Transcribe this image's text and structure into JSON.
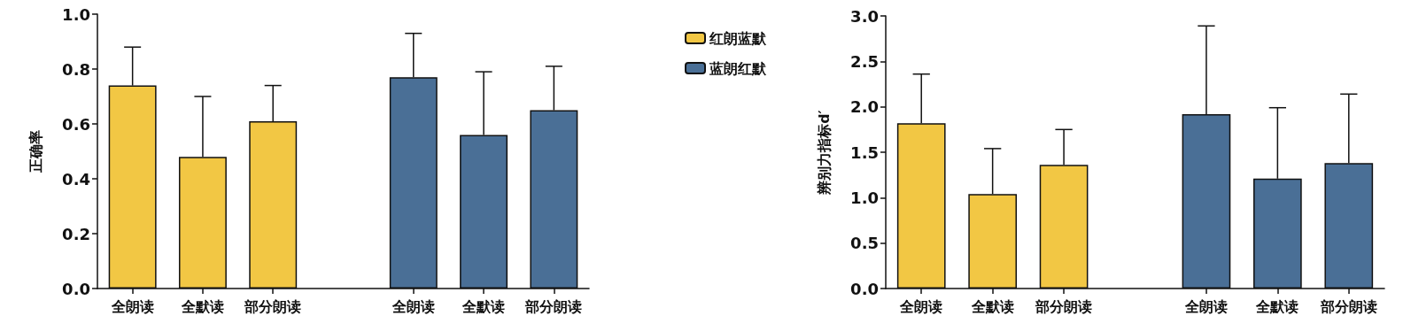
{
  "chart_data": [
    {
      "type": "bar",
      "ylabel": "正确率",
      "categories": [
        "全朗读",
        "全默读",
        "部分朗读",
        null,
        "全朗读",
        "全默读",
        "部分朗读"
      ],
      "series": [
        {
          "name": "红朗蓝默",
          "color": "#f2c744",
          "values": [
            0.74,
            0.48,
            0.61,
            null,
            null,
            null,
            null
          ],
          "errors": [
            [
              0.74,
              0.88
            ],
            [
              0.48,
              0.7
            ],
            [
              0.61,
              0.74
            ],
            null,
            null,
            null,
            null
          ]
        },
        {
          "name": "蓝朗红默",
          "color": "#4a6f96",
          "values": [
            null,
            null,
            null,
            null,
            0.77,
            0.56,
            0.65
          ],
          "errors": [
            null,
            null,
            null,
            null,
            [
              0.77,
              0.93
            ],
            [
              0.56,
              0.79
            ],
            [
              0.65,
              0.81
            ]
          ]
        }
      ],
      "ylim": [
        0,
        1.0
      ],
      "yticks": [
        {
          "value": 0,
          "label": "0.0"
        },
        0.2,
        0.4,
        0.6,
        0.8,
        {
          "value": 1,
          "label": "1.0"
        }
      ],
      "grid": false,
      "legend": "right"
    },
    {
      "type": "bar",
      "ylabel": "辨别力指标d′",
      "categories": [
        "全朗读",
        "全默读",
        "部分朗读",
        null,
        "全朗读",
        "全默读",
        "部分朗读"
      ],
      "series": [
        {
          "color": "#f2c744",
          "values": [
            1.82,
            1.04,
            1.36,
            null,
            null,
            null,
            null
          ],
          "errors": [
            [
              1.82,
              2.36
            ],
            [
              1.04,
              1.54
            ],
            [
              1.36,
              1.75
            ],
            null,
            null,
            null,
            null
          ]
        },
        {
          "color": "#4a6f96",
          "values": [
            null,
            null,
            null,
            null,
            1.92,
            1.21,
            1.38
          ],
          "errors": [
            null,
            null,
            null,
            null,
            [
              1.92,
              2.89
            ],
            [
              1.21,
              1.99
            ],
            [
              1.38,
              2.14
            ]
          ]
        }
      ],
      "ylim": [
        0,
        3.0
      ],
      "yticks": [
        {
          "value": 0,
          "label": "0.0"
        },
        0.5,
        {
          "value": 1,
          "label": "1.0"
        },
        1.5,
        {
          "value": 2,
          "label": "2.0"
        },
        2.5,
        {
          "value": 3,
          "label": "3.0"
        }
      ],
      "grid": false,
      "legend": false
    }
  ]
}
